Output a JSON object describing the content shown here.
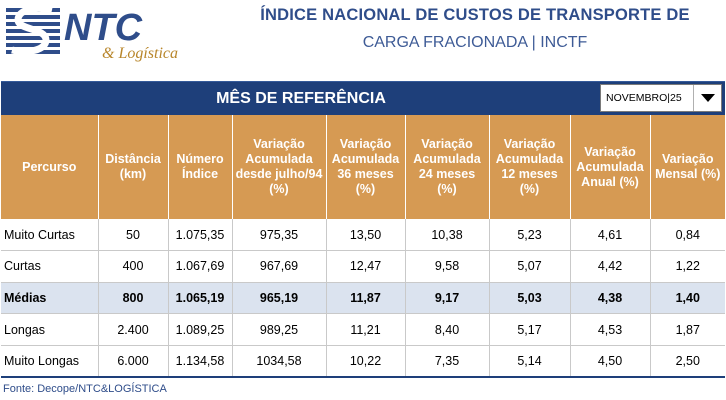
{
  "header": {
    "logo_text": "NTC",
    "logo_subtext": "& Logística",
    "title": "ÍNDICE NACIONAL DE CUSTOS DE TRANSPORTE DE",
    "subtitle": "CARGA FRACIONADA | INCTF"
  },
  "reference": {
    "label": "MÊS DE REFERÊNCIA",
    "selected_month": "NOVEMBRO|25"
  },
  "table": {
    "headers": [
      "Percurso",
      "Distância (km)",
      "Número Índice",
      "Variação Acumulada desde julho/94 (%)",
      "Variação Acumulada 36 meses (%)",
      "Variação Acumulada 24 meses (%)",
      "Variação Acumulada 12 meses (%)",
      "Variação Acumulada Anual (%)",
      "Variação Mensal (%)"
    ],
    "rows": [
      [
        "Muito Curtas",
        "50",
        "1.075,35",
        "975,35",
        "13,50",
        "10,38",
        "5,23",
        "4,61",
        "0,84"
      ],
      [
        "Curtas",
        "400",
        "1.067,69",
        "967,69",
        "12,47",
        "9,58",
        "5,07",
        "4,42",
        "1,22"
      ],
      [
        "Médias",
        "800",
        "1.065,19",
        "965,19",
        "11,87",
        "9,17",
        "5,03",
        "4,38",
        "1,40"
      ],
      [
        "Longas",
        "2.400",
        "1.089,25",
        "989,25",
        "11,21",
        "8,40",
        "5,17",
        "4,53",
        "1,87"
      ],
      [
        "Muito Longas",
        "6.000",
        "1.134,58",
        "1034,58",
        "10,22",
        "7,35",
        "5,14",
        "4,50",
        "2,50"
      ]
    ],
    "highlight_row": "Médias"
  },
  "footer": {
    "source": "Fonte: Decope/NTC&LOGÍSTICA"
  },
  "colors": {
    "brand_blue": "#1e3f7a",
    "header_orange": "#d69a53",
    "highlight_row": "#dbe3ef"
  }
}
